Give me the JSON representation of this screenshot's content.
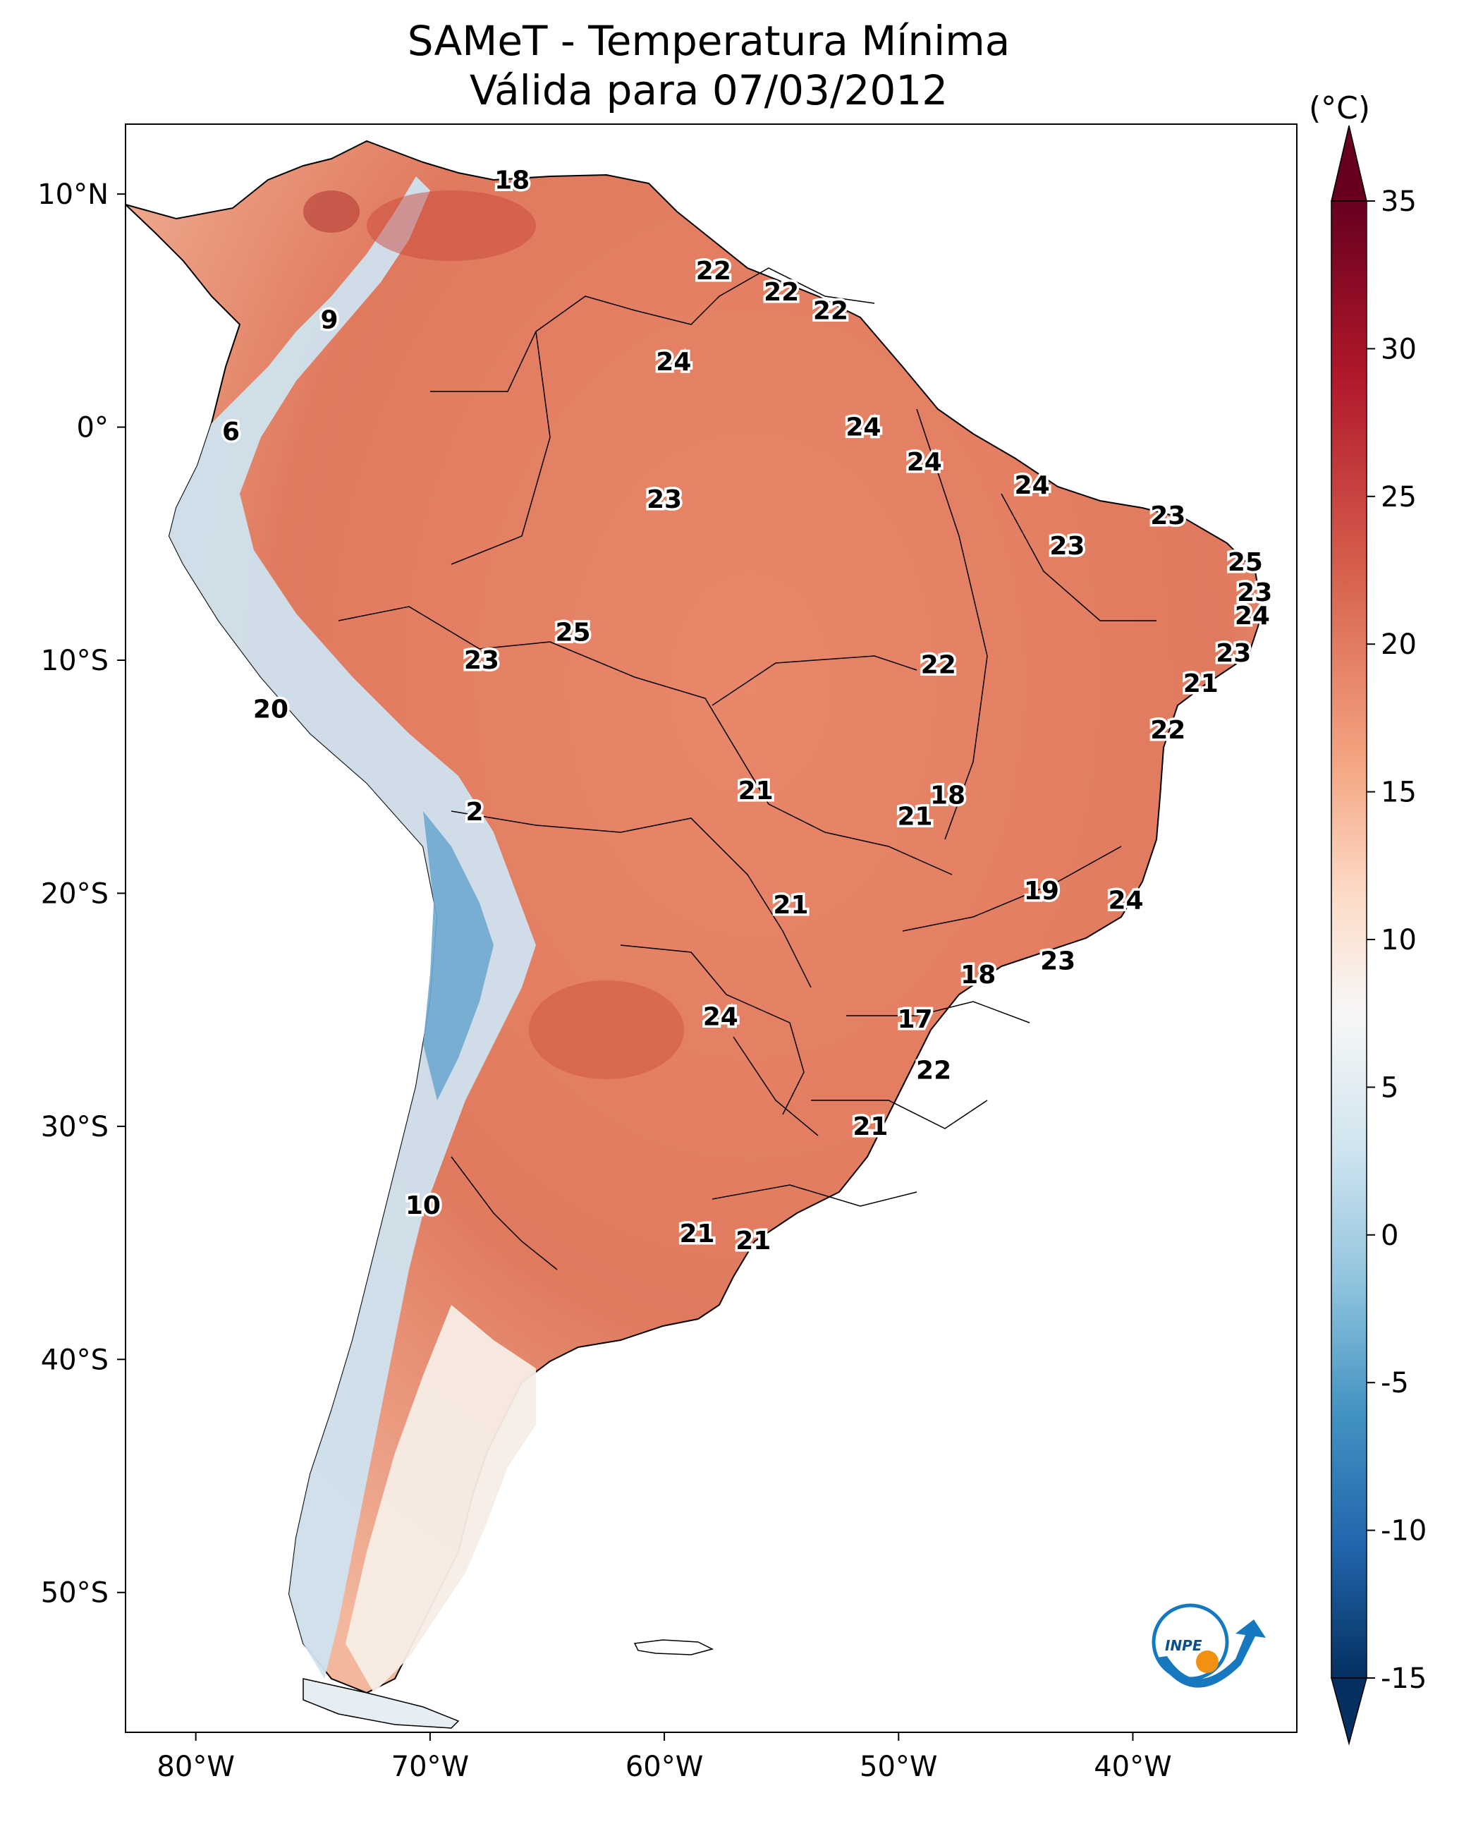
{
  "title": "SAMeT - Temperatura Mínima",
  "subtitle": "Válida para 07/03/2012",
  "colorbar": {
    "unit": "(°C)",
    "min": -15,
    "max": 35,
    "ticks": [
      "35",
      "30",
      "25",
      "20",
      "15",
      "10",
      "5",
      "0",
      "-5",
      "-10",
      "-15"
    ],
    "colors": [
      "#67001f",
      "#b2182b",
      "#d6604d",
      "#f4a582",
      "#fddbc7",
      "#f7f7f7",
      "#d1e5f0",
      "#92c5de",
      "#4393c3",
      "#2166ac",
      "#053061"
    ]
  },
  "map": {
    "extent": {
      "lon": [
        -83,
        -33
      ],
      "lat": [
        -56,
        13
      ]
    },
    "lon_ticks": [
      "80°W",
      "70°W",
      "60°W",
      "50°W",
      "40°W"
    ],
    "lat_ticks": [
      "10°N",
      "0°",
      "10°S",
      "20°S",
      "30°S",
      "40°S",
      "50°S"
    ],
    "point_labels": [
      {
        "value": "18",
        "lon": -66.5,
        "lat": 10.6
      },
      {
        "value": "9",
        "lon": -74.3,
        "lat": 4.6
      },
      {
        "value": "6",
        "lon": -78.5,
        "lat": -0.2
      },
      {
        "value": "22",
        "lon": -57.9,
        "lat": 6.7
      },
      {
        "value": "22",
        "lon": -55.0,
        "lat": 5.8
      },
      {
        "value": "22",
        "lon": -52.9,
        "lat": 5.0
      },
      {
        "value": "24",
        "lon": -59.6,
        "lat": 2.8
      },
      {
        "value": "24",
        "lon": -51.5,
        "lat": 0.0
      },
      {
        "value": "24",
        "lon": -48.9,
        "lat": -1.5
      },
      {
        "value": "24",
        "lon": -44.3,
        "lat": -2.5
      },
      {
        "value": "23",
        "lon": -60.0,
        "lat": -3.1
      },
      {
        "value": "23",
        "lon": -38.5,
        "lat": -3.8
      },
      {
        "value": "23",
        "lon": -42.8,
        "lat": -5.1
      },
      {
        "value": "25",
        "lon": -35.2,
        "lat": -5.8
      },
      {
        "value": "23",
        "lon": -34.8,
        "lat": -7.1
      },
      {
        "value": "24",
        "lon": -34.9,
        "lat": -8.1
      },
      {
        "value": "25",
        "lon": -63.9,
        "lat": -8.8
      },
      {
        "value": "23",
        "lon": -67.8,
        "lat": -10.0
      },
      {
        "value": "22",
        "lon": -48.3,
        "lat": -10.2
      },
      {
        "value": "23",
        "lon": -35.7,
        "lat": -9.7
      },
      {
        "value": "21",
        "lon": -37.1,
        "lat": -11.0
      },
      {
        "value": "22",
        "lon": -38.5,
        "lat": -13.0
      },
      {
        "value": "20",
        "lon": -76.8,
        "lat": -12.1
      },
      {
        "value": "2",
        "lon": -68.1,
        "lat": -16.5
      },
      {
        "value": "21",
        "lon": -56.1,
        "lat": -15.6
      },
      {
        "value": "18",
        "lon": -47.9,
        "lat": -15.8
      },
      {
        "value": "21",
        "lon": -49.3,
        "lat": -16.7
      },
      {
        "value": "19",
        "lon": -43.9,
        "lat": -19.9
      },
      {
        "value": "21",
        "lon": -54.6,
        "lat": -20.5
      },
      {
        "value": "24",
        "lon": -40.3,
        "lat": -20.3
      },
      {
        "value": "23",
        "lon": -43.2,
        "lat": -22.9
      },
      {
        "value": "18",
        "lon": -46.6,
        "lat": -23.5
      },
      {
        "value": "17",
        "lon": -49.3,
        "lat": -25.4
      },
      {
        "value": "24",
        "lon": -57.6,
        "lat": -25.3
      },
      {
        "value": "22",
        "lon": -48.5,
        "lat": -27.6
      },
      {
        "value": "21",
        "lon": -51.2,
        "lat": -30.0
      },
      {
        "value": "10",
        "lon": -70.3,
        "lat": -33.4
      },
      {
        "value": "21",
        "lon": -58.6,
        "lat": -34.6
      },
      {
        "value": "21",
        "lon": -56.2,
        "lat": -34.9
      }
    ]
  },
  "logo_text": "INPE"
}
